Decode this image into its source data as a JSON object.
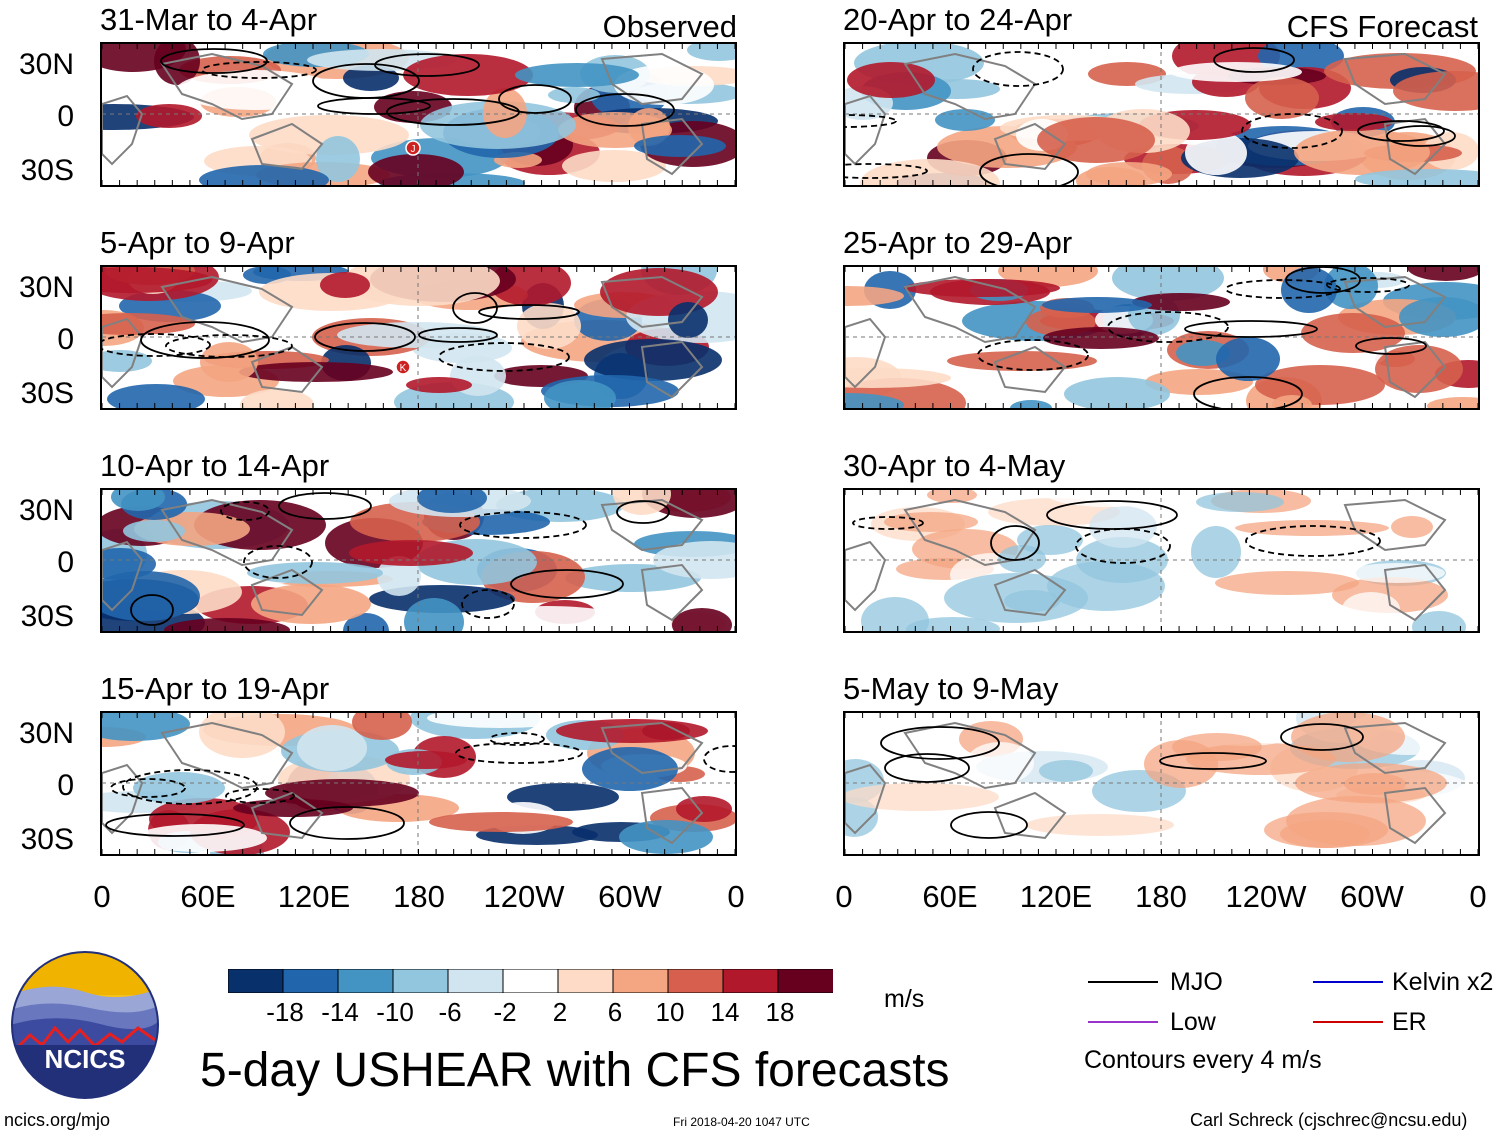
{
  "figure": {
    "title": "5-day USHEAR with CFS forecasts",
    "unit": "m/s",
    "contour_note": "Contours every 4 m/s",
    "observed_label": "Observed",
    "forecast_label": "CFS Forecast",
    "footer_left": "ncics.org/mjo",
    "footer_center": "Fri 2018-04-20 1047 UTC",
    "footer_right": "Carl Schreck (cjschrec@ncsu.edu)",
    "logo_text": "NCICS"
  },
  "axes": {
    "lat_labels": [
      "30N",
      "0",
      "30S"
    ],
    "lon_labels": [
      "0",
      "60E",
      "120E",
      "180",
      "120W",
      "60W",
      "0"
    ]
  },
  "panels": {
    "observed": [
      {
        "title": "31-Mar to 4-Apr",
        "storms": [
          "J"
        ]
      },
      {
        "title": "5-Apr to 9-Apr",
        "storms": [
          "K"
        ]
      },
      {
        "title": "10-Apr to 14-Apr",
        "storms": []
      },
      {
        "title": "15-Apr to 19-Apr",
        "storms": []
      }
    ],
    "forecast": [
      {
        "title": "20-Apr to 24-Apr"
      },
      {
        "title": "25-Apr to 29-Apr"
      },
      {
        "title": "30-Apr to 4-May"
      },
      {
        "title": "5-May to 9-May"
      }
    ]
  },
  "colorbar": {
    "labels": [
      "-18",
      "-14",
      "-10",
      "-6",
      "-2",
      "2",
      "6",
      "10",
      "14",
      "18"
    ],
    "colors": [
      "#08306b",
      "#2166ac",
      "#4393c3",
      "#92c5de",
      "#d1e5f0",
      "#ffffff",
      "#fddbc7",
      "#f4a582",
      "#d6604d",
      "#b2182b",
      "#67001f"
    ]
  },
  "legend": {
    "items": [
      {
        "label": "MJO",
        "color": "#000000"
      },
      {
        "label": "Kelvin x2",
        "color": "#0000cc"
      },
      {
        "label": "Low",
        "color": "#9933cc"
      },
      {
        "label": "ER",
        "color": "#cc0000"
      }
    ]
  }
}
